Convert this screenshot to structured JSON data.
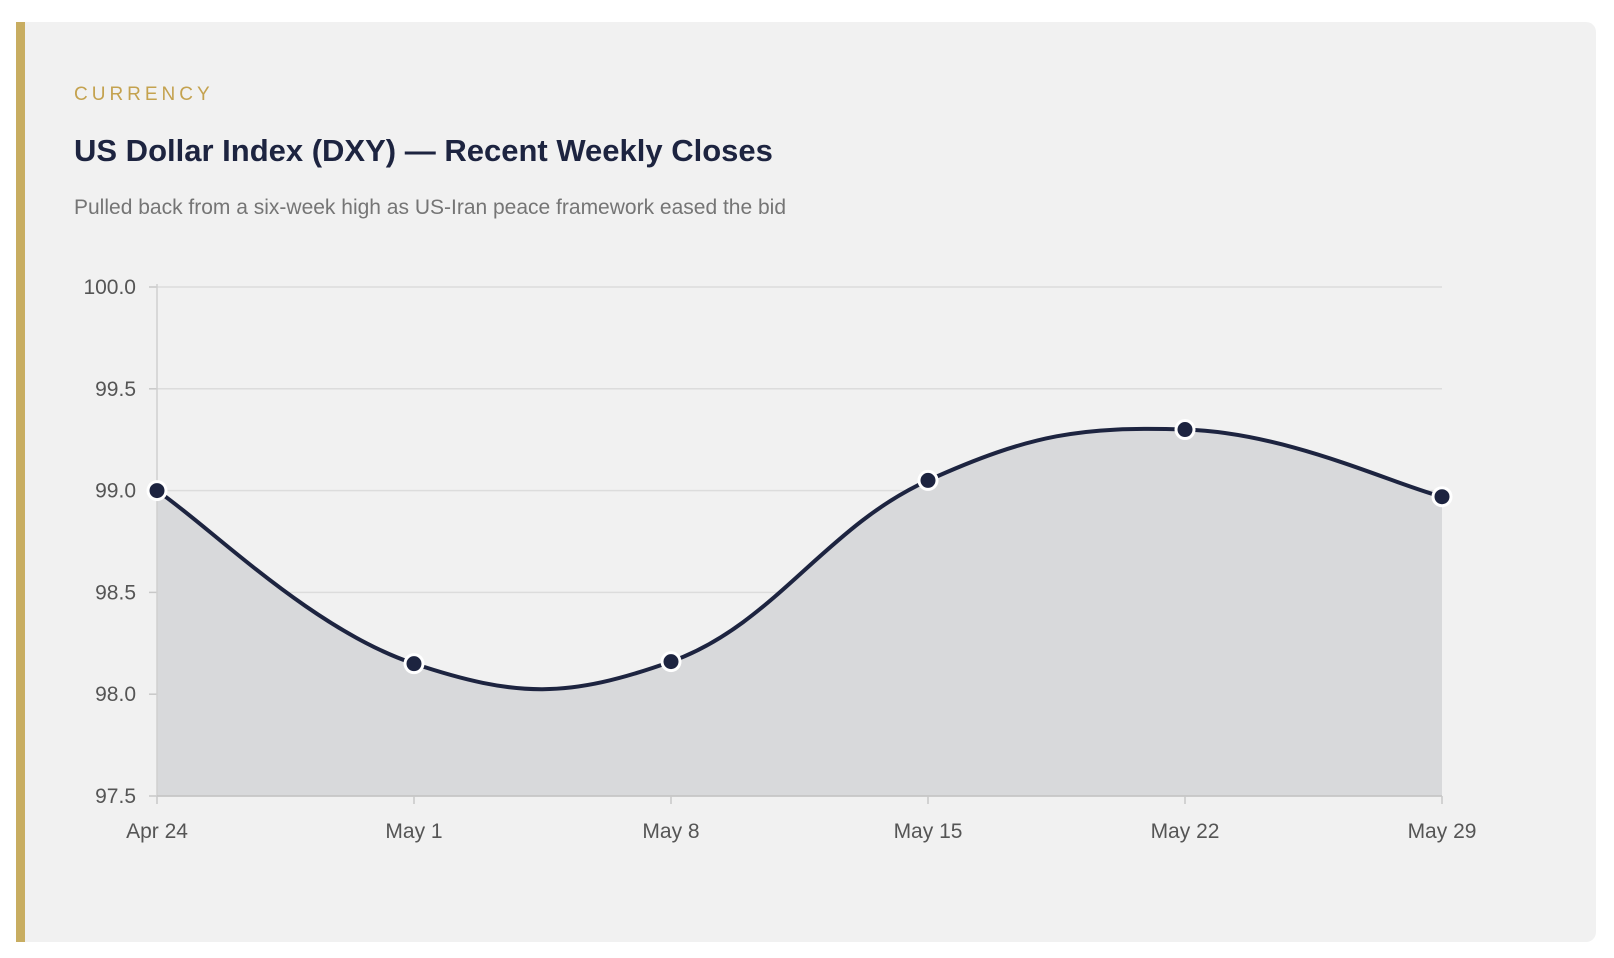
{
  "card": {
    "category": "CURRENCY",
    "title": "US Dollar Index (DXY) — Recent Weekly Closes",
    "subtitle": "Pulled back from a six-week high as US-Iran peace framework eased the bid"
  },
  "colors": {
    "accent": "#c8ad61",
    "category_text": "#c4a24f",
    "line": "#1d2440",
    "area": "#d8d9db",
    "background": "#f1f1f1"
  },
  "chart_data": {
    "type": "area",
    "categories": [
      "Apr 24",
      "May 1",
      "May 8",
      "May 15",
      "May 22",
      "May 29"
    ],
    "series": [
      {
        "values": [
          99.0,
          98.15,
          98.16,
          99.05,
          99.3,
          98.97
        ]
      }
    ],
    "ylim": [
      97.5,
      100.0
    ],
    "yticks": [
      "100.0",
      "99.5",
      "99.0",
      "98.5",
      "98.0",
      "97.5"
    ],
    "grid": true,
    "smooth": true,
    "markers": true
  }
}
